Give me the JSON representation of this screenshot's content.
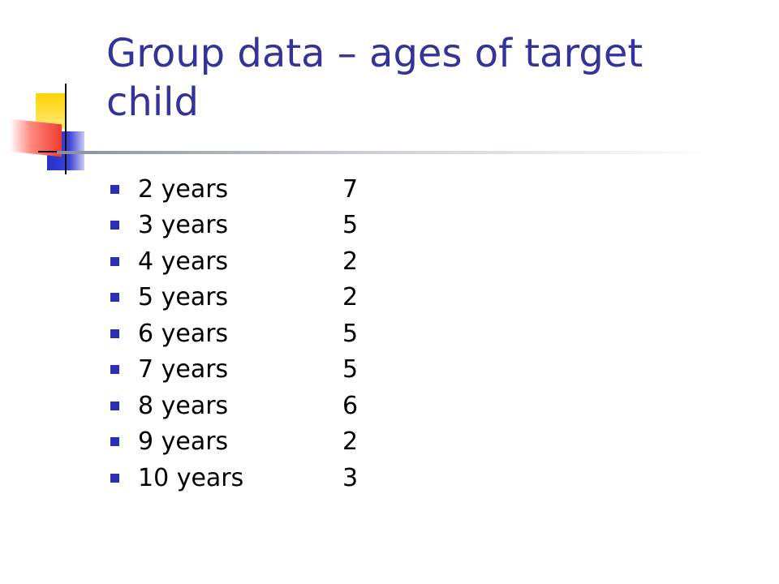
{
  "slide": {
    "title": "Group data – ages of target child",
    "items": [
      {
        "label": "2 years",
        "count": "7"
      },
      {
        "label": "3 years",
        "count": "5"
      },
      {
        "label": "4 years",
        "count": "2"
      },
      {
        "label": "5 years",
        "count": "2"
      },
      {
        "label": "6 years",
        "count": "5"
      },
      {
        "label": "7 years",
        "count": "5"
      },
      {
        "label": "8 years",
        "count": "6"
      },
      {
        "label": "9 years",
        "count": "2"
      },
      {
        "label": "10 years",
        "count": "3"
      }
    ]
  },
  "colors": {
    "title": "#333399",
    "bullet": "#2b2fb8",
    "text": "#000000",
    "accent_yellow": "#ffd400",
    "accent_blue": "#2730c8",
    "accent_red": "#f03a2e"
  }
}
